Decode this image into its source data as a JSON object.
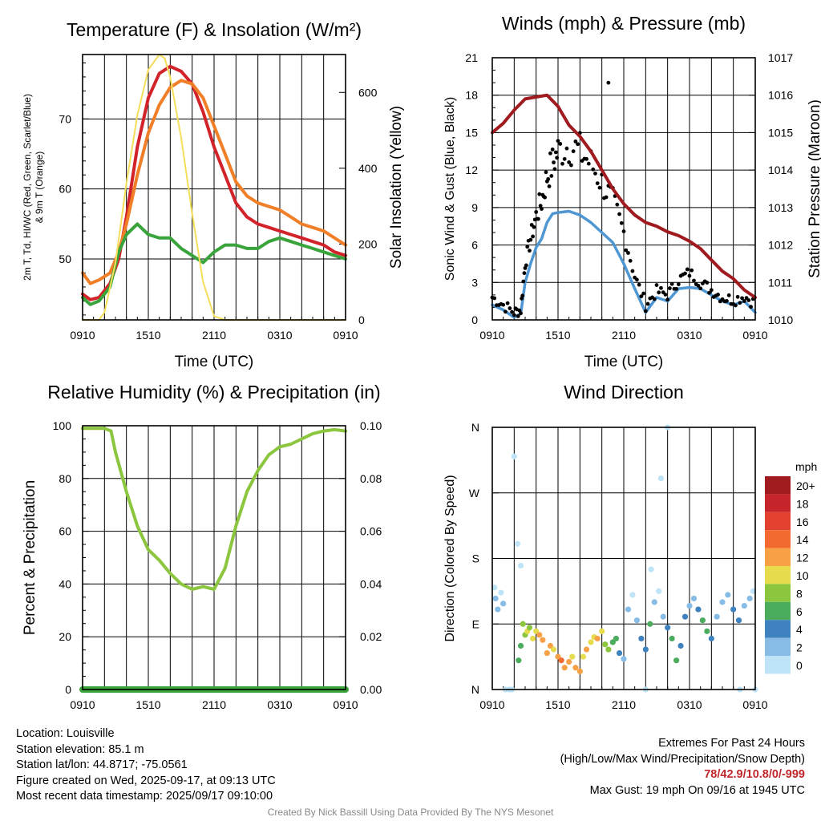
{
  "chart_data": [
    {
      "type": "line",
      "title": "Temperature (F) & Insolation (W/m²)",
      "xlabel": "Time (UTC)",
      "ylabel_left": "2m T, Td, HI/WC (Red, Green, Scarlet/Blue) & 9m T (Orange)",
      "ylabel_right": "Solar Insolation (Yellow)",
      "x_ticks": [
        "0910",
        "1510",
        "2110",
        "0310",
        "0910"
      ],
      "y_left_ticks": [
        50,
        60,
        70
      ],
      "y_left_lim": [
        41.3,
        79.2
      ],
      "y_right_ticks": [
        0,
        200,
        400,
        600
      ],
      "y_right_lim": [
        0,
        700
      ],
      "series": [
        {
          "name": "2m T",
          "color": "#d3232a",
          "axis": "left",
          "x": [
            0,
            0.7,
            1.5,
            2.5,
            3.3,
            4,
            5,
            6,
            7,
            8,
            9,
            10,
            11,
            12,
            13,
            14,
            15,
            16,
            17,
            18,
            19,
            20,
            21,
            22,
            23,
            24
          ],
          "y": [
            45,
            44.2,
            44.5,
            46.5,
            50,
            56,
            66,
            73,
            76.5,
            77.5,
            76.8,
            75,
            71,
            66,
            62,
            58,
            56,
            55,
            54.5,
            54,
            53.5,
            53,
            52.5,
            52,
            51,
            50.5
          ]
        },
        {
          "name": "9m T",
          "color": "#f17f28",
          "axis": "left",
          "x": [
            0,
            0.7,
            1.5,
            2.5,
            3.3,
            4,
            5,
            6,
            7,
            8,
            9,
            10,
            11,
            12,
            13,
            14,
            15,
            16,
            17,
            18,
            19,
            20,
            21,
            22,
            23,
            24
          ],
          "y": [
            48,
            46.5,
            47,
            48,
            51,
            55,
            62,
            68,
            72,
            74.5,
            75.5,
            75,
            73,
            69,
            65,
            61,
            59,
            58,
            57.5,
            57,
            56,
            55,
            54.5,
            54,
            53,
            52
          ]
        },
        {
          "name": "2m Td",
          "color": "#3aa43c",
          "axis": "left",
          "x": [
            0,
            0.7,
            1.5,
            2.5,
            3.3,
            4,
            5,
            6,
            7,
            8,
            9,
            10,
            11,
            12,
            13,
            14,
            15,
            16,
            17,
            18,
            19,
            20,
            21,
            22,
            23,
            24
          ],
          "y": [
            44.5,
            43.5,
            44,
            46,
            51,
            53.5,
            55,
            53.5,
            53,
            53,
            51.5,
            50.5,
            49.5,
            51,
            52,
            52,
            51.5,
            51.5,
            52.5,
            53,
            52.5,
            52,
            51.5,
            51,
            50.5,
            50
          ]
        },
        {
          "name": "Solar Insolation",
          "color": "#f4de5a",
          "axis": "right",
          "x": [
            0,
            1.5,
            2,
            3,
            4,
            5,
            6,
            7,
            7.5,
            8,
            9,
            10,
            11,
            12,
            13,
            24
          ],
          "y": [
            0,
            0,
            20,
            150,
            360,
            540,
            660,
            700,
            690,
            640,
            480,
            280,
            100,
            10,
            0,
            0
          ]
        }
      ]
    },
    {
      "type": "line",
      "title": "Winds (mph) & Pressure (mb)",
      "xlabel": "Time (UTC)",
      "ylabel_left": "Sonic Wind & Gust (Blue, Black)",
      "ylabel_right": "Station Pressure (Maroon)",
      "x_ticks": [
        "0910",
        "1510",
        "2110",
        "0310",
        "0910"
      ],
      "y_left_ticks": [
        0,
        3,
        6,
        9,
        12,
        15,
        18,
        21
      ],
      "y_left_lim": [
        0,
        21
      ],
      "y_right_ticks": [
        1010,
        1011,
        1012,
        1013,
        1014,
        1015,
        1016,
        1017
      ],
      "y_right_lim": [
        1010,
        1017
      ],
      "series": [
        {
          "name": "Sonic Wind",
          "color": "#4f97d3",
          "axis": "left",
          "x": [
            0,
            1,
            2,
            2.6,
            3,
            3.5,
            4,
            4.5,
            5,
            5.5,
            6,
            7,
            8,
            9,
            10,
            11,
            12,
            13,
            14,
            15,
            16,
            17,
            18,
            19,
            20,
            21,
            22,
            23,
            24
          ],
          "y": [
            1.2,
            0.8,
            0.2,
            0.5,
            3,
            4.5,
            5.8,
            6.5,
            7.8,
            8.5,
            8.6,
            8.7,
            8.4,
            7.8,
            7,
            6.2,
            4.5,
            2.5,
            0.6,
            1.8,
            1.5,
            2.5,
            2.6,
            2.5,
            2,
            1.5,
            1.2,
            1.5,
            0.6
          ]
        },
        {
          "name": "Gust",
          "color": "#000000",
          "axis": "left",
          "x": [
            0,
            1,
            2,
            2.6,
            3,
            3.5,
            4,
            4.5,
            5,
            5.5,
            6,
            7,
            8,
            9,
            10,
            11,
            12,
            13,
            14,
            15,
            16,
            17,
            18,
            19,
            20,
            21,
            22,
            23,
            24
          ],
          "y": [
            1.8,
            1.2,
            0.6,
            0.8,
            4.5,
            6.5,
            8.3,
            9.5,
            11.5,
            12.5,
            13.5,
            14,
            13.5,
            12.5,
            11,
            9.5,
            7,
            3.5,
            1.2,
            2.3,
            2,
            3.2,
            3.8,
            3,
            2.4,
            1.8,
            1.6,
            1.9,
            1.3
          ]
        },
        {
          "name": "Station Pressure",
          "color": "#a01b1f",
          "axis": "right",
          "x": [
            0,
            1,
            2,
            3,
            4,
            5,
            6,
            7,
            8,
            9,
            10,
            11,
            12,
            13,
            14,
            15,
            16,
            17,
            18,
            19,
            20,
            21,
            22,
            23,
            24
          ],
          "y": [
            1015.0,
            1015.25,
            1015.6,
            1015.9,
            1015.95,
            1016.0,
            1015.7,
            1015.2,
            1014.9,
            1014.5,
            1014.0,
            1013.5,
            1013.1,
            1012.8,
            1012.6,
            1012.5,
            1012.35,
            1012.25,
            1012.1,
            1011.9,
            1011.6,
            1011.3,
            1011.1,
            1010.8,
            1010.6
          ]
        }
      ],
      "annotations": {
        "max_gust_point": {
          "x": 10.6,
          "y": 19
        }
      }
    },
    {
      "type": "line",
      "title": "Relative Humidity (%) & Precipitation (in)",
      "ylabel_left": "Percent & Precipitation",
      "x_ticks": [
        "0910",
        "1510",
        "2110",
        "0310",
        "0910"
      ],
      "y_left_ticks": [
        0,
        20,
        40,
        60,
        80,
        100
      ],
      "y_left_lim": [
        0,
        100
      ],
      "y_right_ticks": [
        "0.00",
        "0.02",
        "0.04",
        "0.06",
        "0.08",
        "0.10"
      ],
      "y_right_lim": [
        0,
        0.1
      ],
      "series": [
        {
          "name": "Relative Humidity",
          "color": "#8cc63f",
          "axis": "left",
          "x": [
            0,
            1,
            2,
            2.6,
            3,
            4,
            5,
            6,
            7,
            8,
            9,
            10,
            11,
            12,
            13,
            14,
            15,
            16,
            17,
            18,
            19,
            20,
            21,
            22,
            23,
            24
          ],
          "y": [
            99,
            99,
            99,
            98,
            90,
            75,
            62,
            53,
            49,
            44,
            40,
            38,
            39,
            38,
            46,
            62,
            75,
            83,
            89,
            92,
            93,
            95,
            97,
            98,
            98.5,
            98
          ]
        },
        {
          "name": "Precipitation",
          "color": "#3aa43c",
          "axis": "right",
          "x": [
            0,
            24
          ],
          "y": [
            0,
            0
          ]
        }
      ]
    },
    {
      "type": "scatter",
      "title": "Wind Direction",
      "ylabel_left": "Direction (Colored By Speed)",
      "x_ticks": [
        "0910",
        "1510",
        "2110",
        "0310",
        "0910"
      ],
      "y_ticks": [
        "N",
        "E",
        "S",
        "W",
        "N"
      ],
      "y_lim": [
        0,
        360
      ],
      "legend": {
        "unit": "mph",
        "labels": [
          "20+",
          "18",
          "16",
          "14",
          "12",
          "10",
          "8",
          "6",
          "4",
          "2",
          "0"
        ],
        "colors": [
          "#a01b1f",
          "#c6262b",
          "#e2412f",
          "#f26a2f",
          "#f8a045",
          "#e6dc4d",
          "#8cc63f",
          "#4bac5e",
          "#3f82c0",
          "#86bce6",
          "#bfe4f7"
        ]
      },
      "points": [
        [
          0.3,
          125,
          1
        ],
        [
          0.5,
          110,
          1
        ],
        [
          0.8,
          133,
          0
        ],
        [
          1.0,
          118,
          1
        ],
        [
          1.2,
          0,
          0
        ],
        [
          1.5,
          0,
          0
        ],
        [
          1.8,
          0,
          0
        ],
        [
          2.4,
          40,
          3
        ],
        [
          2.6,
          60,
          3
        ],
        [
          2.8,
          90,
          4
        ],
        [
          3.0,
          75,
          4
        ],
        [
          3.2,
          80,
          5
        ],
        [
          3.4,
          85,
          4
        ],
        [
          3.7,
          70,
          5
        ],
        [
          4.0,
          80,
          5
        ],
        [
          4.3,
          75,
          6
        ],
        [
          4.6,
          68,
          6
        ],
        [
          5.0,
          50,
          6
        ],
        [
          5.3,
          60,
          6
        ],
        [
          5.6,
          55,
          5
        ],
        [
          6.0,
          45,
          6
        ],
        [
          6.3,
          40,
          7
        ],
        [
          6.6,
          30,
          6
        ],
        [
          7.0,
          38,
          6
        ],
        [
          7.3,
          45,
          5
        ],
        [
          7.6,
          30,
          6
        ],
        [
          8.0,
          25,
          6
        ],
        [
          8.3,
          45,
          5
        ],
        [
          8.6,
          55,
          6
        ],
        [
          9.0,
          65,
          5
        ],
        [
          9.3,
          72,
          5
        ],
        [
          9.6,
          70,
          6
        ],
        [
          10.0,
          80,
          5
        ],
        [
          10.3,
          62,
          4
        ],
        [
          10.6,
          55,
          4
        ],
        [
          11.0,
          65,
          3
        ],
        [
          11.3,
          70,
          3
        ],
        [
          11.6,
          50,
          2
        ],
        [
          12.0,
          42,
          1
        ],
        [
          12.4,
          110,
          1
        ],
        [
          12.8,
          130,
          0
        ],
        [
          13.2,
          95,
          1
        ],
        [
          13.6,
          70,
          2
        ],
        [
          14.0,
          55,
          2
        ],
        [
          14.4,
          90,
          3
        ],
        [
          14.8,
          120,
          1
        ],
        [
          15.2,
          135,
          0
        ],
        [
          15.6,
          100,
          1
        ],
        [
          16.0,
          85,
          2
        ],
        [
          16.4,
          70,
          3
        ],
        [
          16.8,
          40,
          3
        ],
        [
          17.2,
          60,
          2
        ],
        [
          17.6,
          100,
          2
        ],
        [
          18.0,
          115,
          1
        ],
        [
          18.4,
          125,
          1
        ],
        [
          18.8,
          110,
          2
        ],
        [
          19.2,
          95,
          3
        ],
        [
          19.6,
          80,
          3
        ],
        [
          20.0,
          70,
          2
        ],
        [
          20.5,
          100,
          1
        ],
        [
          21.0,
          120,
          1
        ],
        [
          21.5,
          130,
          1
        ],
        [
          22.0,
          110,
          2
        ],
        [
          22.5,
          95,
          2
        ],
        [
          23.0,
          115,
          1
        ],
        [
          23.5,
          125,
          1
        ],
        [
          23.8,
          135,
          0
        ],
        [
          0.2,
          140,
          0
        ],
        [
          1.6,
          0,
          0
        ],
        [
          2.6,
          170,
          0
        ],
        [
          2.0,
          320,
          0
        ],
        [
          2.3,
          200,
          0
        ],
        [
          16.0,
          360,
          0
        ],
        [
          15.4,
          290,
          0
        ],
        [
          14.5,
          165,
          0
        ],
        [
          14.0,
          0,
          0
        ],
        [
          22.6,
          0,
          0
        ],
        [
          24.0,
          0,
          0
        ]
      ]
    }
  ],
  "info": {
    "location": "Location: Louisville",
    "elevation": "Station elevation: 85.1 m",
    "latlon": "Station lat/lon: 44.8717; -75.0561",
    "created": "Figure created on Wed, 2025-09-17, at 09:13 UTC",
    "latest": "Most recent data timestamp: 2025/09/17 09:10:00"
  },
  "extremes": {
    "title": "Extremes For Past 24 Hours",
    "subtitle": "(High/Low/Max Wind/Precipitation/Snow Depth)",
    "values": "78/42.9/10.8/0/-999",
    "max_gust": "Max Gust: 19 mph On 09/16 at 1945 UTC"
  },
  "credit": "Created By Nick Bassill Using Data Provided By The NYS Mesonet"
}
